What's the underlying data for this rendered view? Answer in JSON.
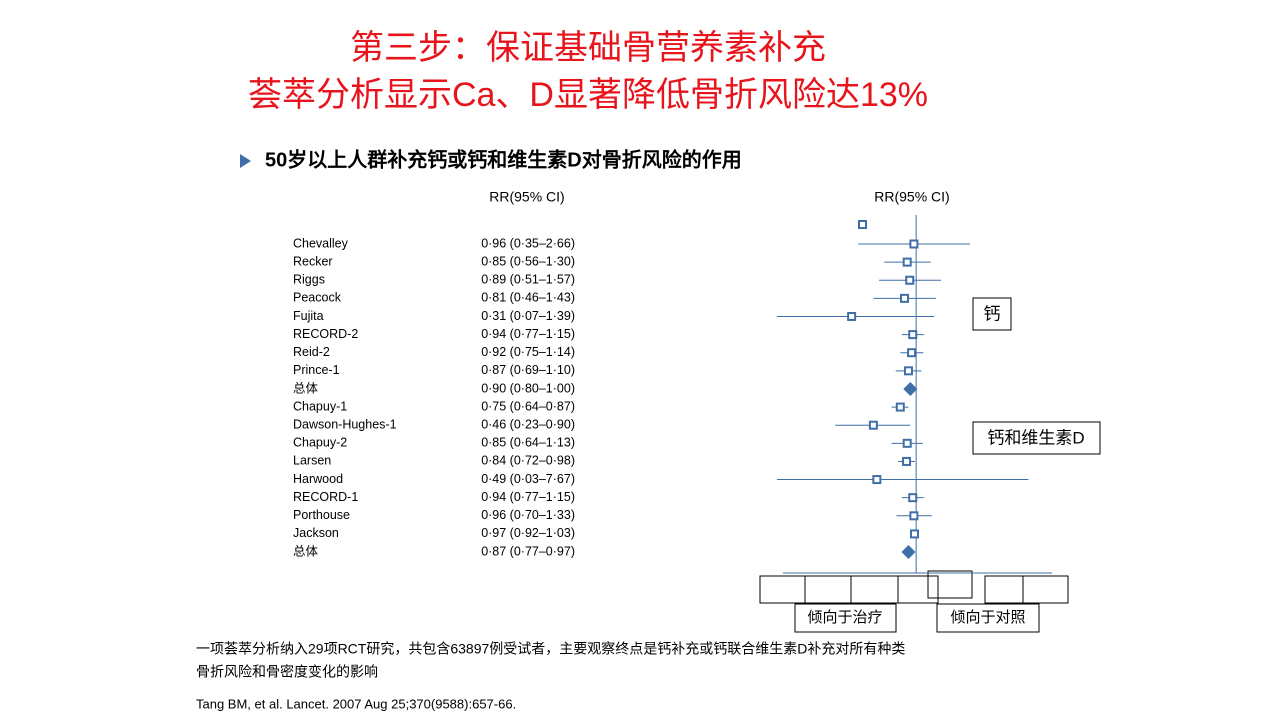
{
  "title": [
    "第三步：保证基础骨营养素补充",
    "荟萃分析显示Ca、D显著降低骨折风险达13%"
  ],
  "subtitle": "50岁以上人群补充钙或钙和维生素D对骨折风险的作用",
  "chart_data": {
    "type": "forest",
    "column_header": "RR(95% CI)",
    "plot_header": "RR(95% CI)",
    "xlim": [
      0.08,
      10
    ],
    "log_scale": true,
    "reference_line": 1,
    "color": "#3f6fa6",
    "rows": [
      {
        "study": "Chevalley",
        "value": 0.96,
        "lower": 0.35,
        "upper": 2.66,
        "label": "0·96 (0·35–2·66)",
        "summary": false
      },
      {
        "study": "Recker",
        "value": 0.85,
        "lower": 0.56,
        "upper": 1.3,
        "label": "0·85 (0·56–1·30)",
        "summary": false
      },
      {
        "study": "Riggs",
        "value": 0.89,
        "lower": 0.51,
        "upper": 1.57,
        "label": "0·89 (0·51–1·57)",
        "summary": false
      },
      {
        "study": "Peacock",
        "value": 0.81,
        "lower": 0.46,
        "upper": 1.43,
        "label": "0·81 (0·46–1·43)",
        "summary": false
      },
      {
        "study": "Fujita",
        "value": 0.31,
        "lower": 0.07,
        "upper": 1.39,
        "label": "0·31 (0·07–1·39)",
        "summary": false
      },
      {
        "study": "RECORD-2",
        "value": 0.94,
        "lower": 0.77,
        "upper": 1.15,
        "label": "0·94 (0·77–1·15)",
        "summary": false
      },
      {
        "study": "Reid-2",
        "value": 0.92,
        "lower": 0.75,
        "upper": 1.14,
        "label": "0·92 (0·75–1·14)",
        "summary": false
      },
      {
        "study": "Prince-1",
        "value": 0.87,
        "lower": 0.69,
        "upper": 1.1,
        "label": "0·87 (0·69–1·10)",
        "summary": false
      },
      {
        "study": "总体",
        "value": 0.9,
        "lower": 0.8,
        "upper": 1.0,
        "label": "0·90 (0·80–1·00)",
        "summary": true
      },
      {
        "study": "Chapuy-1",
        "value": 0.75,
        "lower": 0.64,
        "upper": 0.87,
        "label": "0·75 (0·64–0·87)",
        "summary": false
      },
      {
        "study": "Dawson-Hughes-1",
        "value": 0.46,
        "lower": 0.23,
        "upper": 0.9,
        "label": "0·46 (0·23–0·90)",
        "summary": false
      },
      {
        "study": "Chapuy-2",
        "value": 0.85,
        "lower": 0.64,
        "upper": 1.13,
        "label": "0·85 (0·64–1·13)",
        "summary": false
      },
      {
        "study": "Larsen",
        "value": 0.84,
        "lower": 0.72,
        "upper": 0.98,
        "label": "0·84 (0·72–0·98)",
        "summary": false
      },
      {
        "study": "Harwood",
        "value": 0.49,
        "lower": 0.03,
        "upper": 7.67,
        "label": "0·49 (0·03–7·67)",
        "summary": false
      },
      {
        "study": "RECORD-1",
        "value": 0.94,
        "lower": 0.77,
        "upper": 1.15,
        "label": "0·94 (0·77–1·15)",
        "summary": false
      },
      {
        "study": "Porthouse",
        "value": 0.96,
        "lower": 0.7,
        "upper": 1.33,
        "label": "0·96 (0·70–1·33)",
        "summary": false
      },
      {
        "study": "Jackson",
        "value": 0.97,
        "lower": 0.92,
        "upper": 1.03,
        "label": "0·97 (0·92–1·03)",
        "summary": false
      },
      {
        "study": "总体",
        "value": 0.87,
        "lower": 0.77,
        "upper": 0.97,
        "label": "0·87 (0·77–0·97)",
        "summary": true
      }
    ],
    "group_labels": [
      "钙",
      "钙和维生素D"
    ],
    "direction_labels": [
      "倾向于治疗",
      "倾向于对照"
    ]
  },
  "footnote": [
    "一项荟萃分析纳入29项RCT研究，共包含63897例受试者，主要观察终点是钙补充或钙联合维生素D补充对所有种类",
    "骨折风险和骨密度变化的影响"
  ],
  "citation": "Tang BM, et al. Lancet. 2007 Aug 25;370(9588):657-66."
}
